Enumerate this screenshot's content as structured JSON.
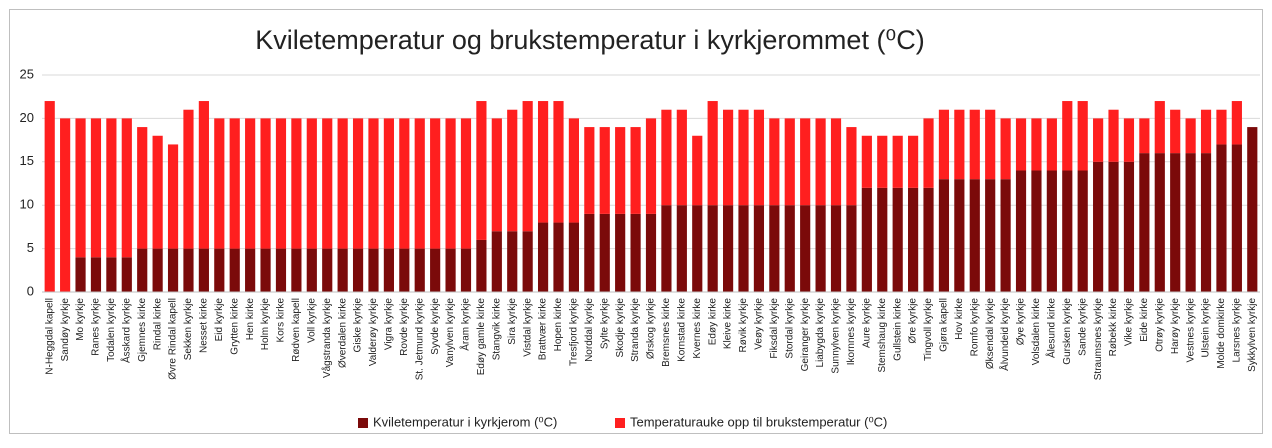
{
  "chart_data": {
    "type": "stacked_bar",
    "title": "Kviletemperatur og brukstemperatur i kyrkjerommet (⁰C)",
    "categories": [
      "N-Heggdal kapell",
      "Sandøy kyrkje",
      "Mo kyrkje",
      "Ranes kyrkje",
      "Todalen kyrkje",
      "Åsskard kyrkje",
      "Gjemnes kirke",
      "Rindal kirke",
      "Øvre Rindal kapell",
      "Sekken kyrkje",
      "Nesset kirke",
      "Eid kyrkje",
      "Grytten kirke",
      "Hen kirke",
      "Holm kyrkje",
      "Kors kirke",
      "Rødven kapell",
      "Voll kyrkje",
      "Vågstranda kyrkje",
      "Øverdalen kirke",
      "Giske kyrkje",
      "Valderøy kyrkje",
      "Vigra kyrkje",
      "Rovde kyrkje",
      "St. Jetmund kyrkje",
      "Syvde kyrkje",
      "Vanylven kyrkje",
      "Åram kyrkje",
      "Edøy gamle kirke",
      "Stangvik kirke",
      "Sira kyrkje",
      "Vistdal kyrkje",
      "Brattvær kirke",
      "Hopen kirke",
      "Tresfjord kyrkje",
      "Norddal kyrkje",
      "Sylte kyrkje",
      "Skodje kyrkje",
      "Stranda kyrkje",
      "Ørskog kyrkje",
      "Bremsnes kirke",
      "Kornstad kirke",
      "Kvernes kirke",
      "Edøy kirke",
      "Kleive kirke",
      "Røvik kyrkje",
      "Veøy kyrkje",
      "Fiksdal kyrkje",
      "Stordal kyrkje",
      "Geiranger kyrkje",
      "Liabygda kyrkje",
      "Sunnylven kyrkje",
      "Ikornnes kyrkje",
      "Aure kyrkje",
      "Stemshaug kirke",
      "Gullstein kirke",
      "Øre kyrkje",
      "Tingvoll kyrkje",
      "Gjøra kapell",
      "Hov kirke",
      "Romfo kyrkje",
      "Øksendal kyrkje",
      "Ålvundeid kyrkje",
      "Øye kyrkje",
      "Volsdalen kirke",
      "Ålesund kirke",
      "Gursken kyrkje",
      "Sande kyrkje",
      "Straumsnes kyrkje",
      "Røbekk kirke",
      "Vike kyrkje",
      "Eide kirke",
      "Otrøy kyrkje",
      "Harøy kyrkje",
      "Vestnes kyrkje",
      "Ulstein kyrkje",
      "Molde domkirke",
      "Larsnes kyrkje",
      "Sykkylven kyrkje"
    ],
    "series": [
      {
        "name": "Kviletemperatur i kyrkjerom (⁰C)",
        "color": "#7b0a0a",
        "values": [
          0,
          0,
          4,
          4,
          4,
          4,
          5,
          5,
          5,
          5,
          5,
          5,
          5,
          5,
          5,
          5,
          5,
          5,
          5,
          5,
          5,
          5,
          5,
          5,
          5,
          5,
          5,
          5,
          6,
          7,
          7,
          7,
          8,
          8,
          8,
          9,
          9,
          9,
          9,
          9,
          10,
          10,
          10,
          10,
          10,
          10,
          10,
          10,
          10,
          10,
          10,
          10,
          10,
          12,
          12,
          12,
          12,
          12,
          13,
          13,
          13,
          13,
          13,
          14,
          14,
          14,
          14,
          14,
          15,
          15,
          15,
          16,
          16,
          16,
          16,
          16,
          17,
          17,
          19
        ]
      },
      {
        "name": "Temperaturauke opp til brukstemperatur (⁰C)",
        "color": "#ff1f1f",
        "values": [
          22,
          20,
          16,
          16,
          16,
          16,
          14,
          13,
          12,
          16,
          17,
          15,
          15,
          15,
          15,
          15,
          15,
          15,
          15,
          15,
          15,
          15,
          15,
          15,
          15,
          15,
          15,
          15,
          16,
          13,
          14,
          15,
          14,
          14,
          12,
          10,
          10,
          10,
          10,
          11,
          11,
          11,
          8,
          12,
          11,
          11,
          11,
          10,
          10,
          10,
          10,
          10,
          9,
          6,
          6,
          6,
          6,
          8,
          8,
          8,
          8,
          8,
          7,
          6,
          6,
          6,
          8,
          8,
          5,
          6,
          5,
          4,
          6,
          5,
          4,
          5,
          4,
          5,
          0
        ]
      }
    ],
    "ylim": [
      0,
      25
    ],
    "yticks": [
      0,
      5,
      10,
      15,
      20,
      25
    ],
    "grid": true,
    "legend": "bottom"
  }
}
